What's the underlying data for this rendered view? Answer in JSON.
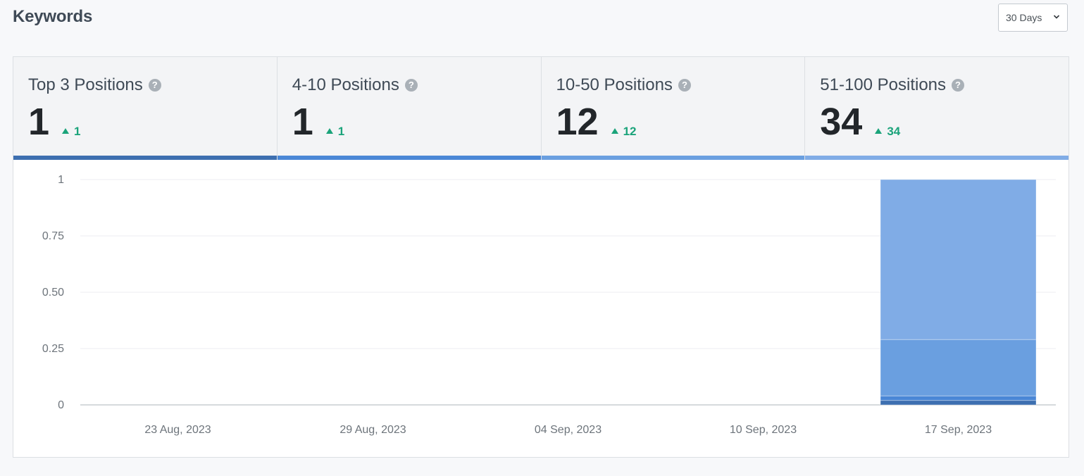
{
  "header": {
    "title": "Keywords"
  },
  "range_select": {
    "value": "30 Days"
  },
  "tabs": [
    {
      "label": "Top 3 Positions",
      "value": "1",
      "delta": "1",
      "color": "#3d6fb0"
    },
    {
      "label": "4-10 Positions",
      "value": "1",
      "delta": "1",
      "color": "#4a87d6"
    },
    {
      "label": "10-50 Positions",
      "value": "12",
      "delta": "12",
      "color": "#6a9fe0"
    },
    {
      "label": "51-100 Positions",
      "value": "34",
      "delta": "34",
      "color": "#80ace6"
    }
  ],
  "colors": {
    "positive": "#1aa37a",
    "grid": "#eceef0",
    "axis": "#c9cdd2"
  },
  "chart_data": {
    "type": "bar",
    "stacked": true,
    "categories": [
      "23 Aug, 2023",
      "29 Aug, 2023",
      "04 Sep, 2023",
      "10 Sep, 2023",
      "17 Sep, 2023"
    ],
    "series": [
      {
        "name": "Top 3 Positions",
        "values": [
          0,
          0,
          0,
          0,
          0.02
        ],
        "color": "#3d6fb0"
      },
      {
        "name": "4-10 Positions",
        "values": [
          0,
          0,
          0,
          0,
          0.02
        ],
        "color": "#4a87d6"
      },
      {
        "name": "10-50 Positions",
        "values": [
          0,
          0,
          0,
          0,
          0.25
        ],
        "color": "#6a9fe0"
      },
      {
        "name": "51-100 Positions",
        "values": [
          0,
          0,
          0,
          0,
          0.71
        ],
        "color": "#80ace6"
      }
    ],
    "yticks": [
      "1",
      "0.75",
      "0.50",
      "0.25",
      "0"
    ],
    "ytick_values": [
      1,
      0.75,
      0.5,
      0.25,
      0
    ],
    "ylim": [
      0,
      1
    ],
    "grid": true,
    "legend": "none"
  }
}
